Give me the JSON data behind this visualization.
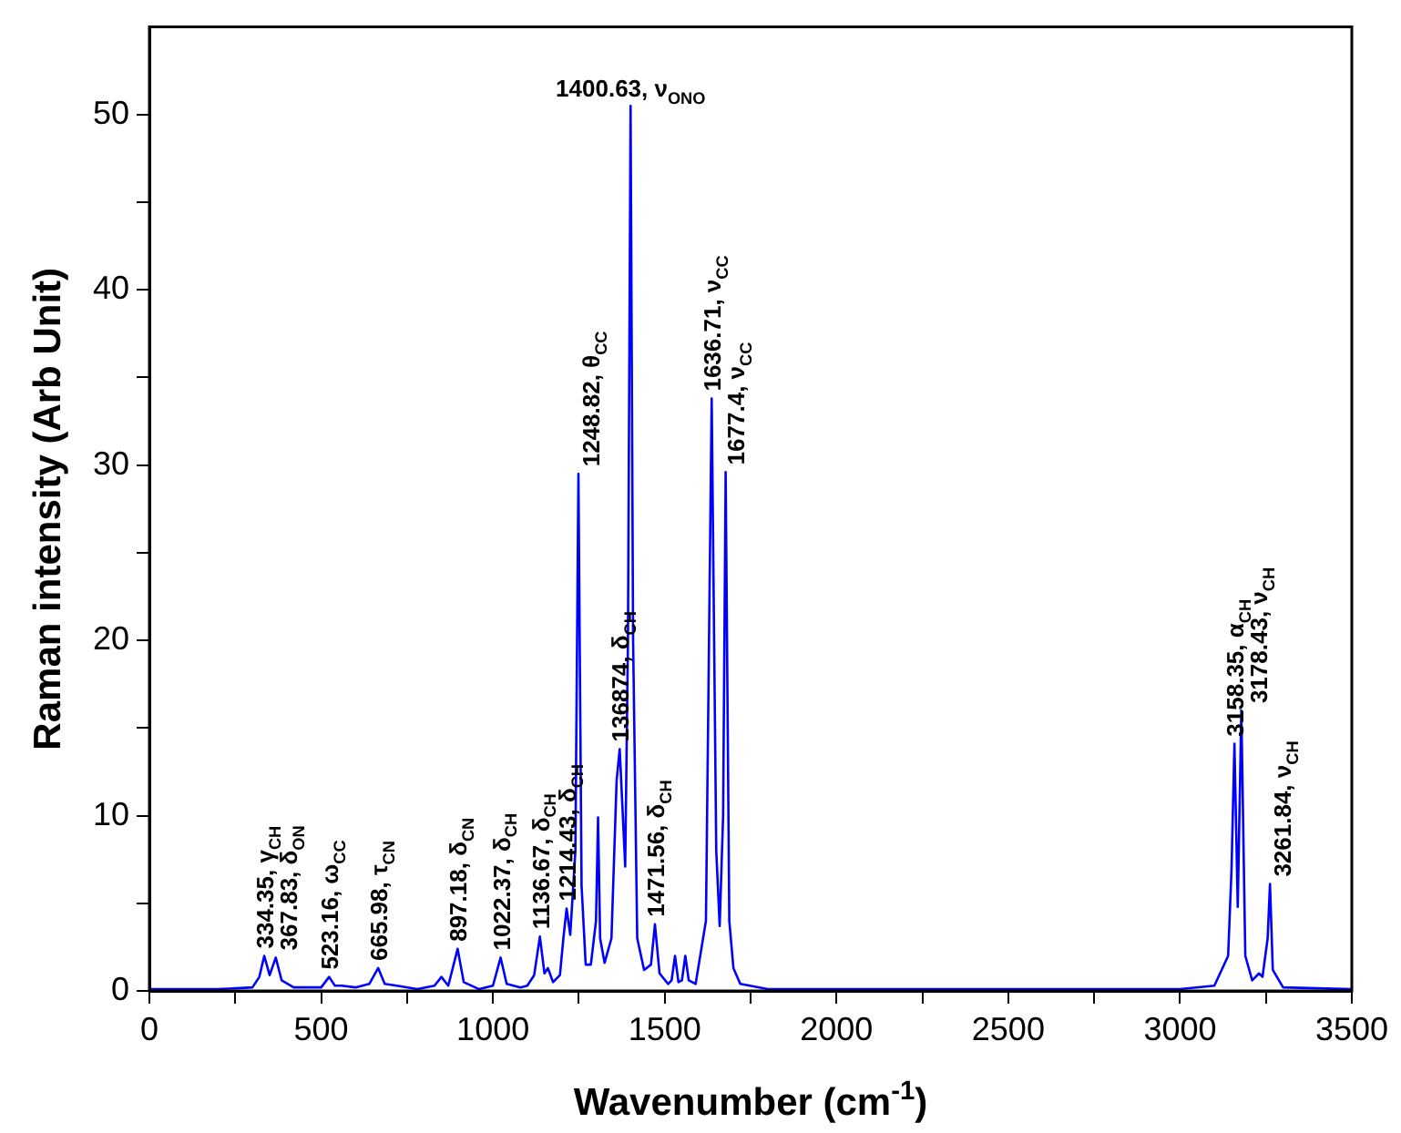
{
  "chart_data": {
    "type": "line",
    "xlabel": "Wavenumber (cm$^{-1}$)",
    "ylabel": "Raman intensity (Arb Unit)",
    "color": "#0000ff",
    "grid": false,
    "xlim": [
      0,
      3500
    ],
    "ylim": [
      0,
      55
    ],
    "xticks": [
      0,
      {
        "value": 250,
        "label": null
      },
      500,
      {
        "value": 750,
        "label": null
      },
      1000,
      {
        "value": 1250,
        "label": null
      },
      1500,
      {
        "value": 1750,
        "label": null
      },
      2000,
      {
        "value": 2250,
        "label": null
      },
      2500,
      {
        "value": 2750,
        "label": null
      },
      3000,
      {
        "value": 3250,
        "label": null
      },
      3500
    ],
    "yticks": [
      0,
      {
        "value": 5,
        "label": null
      },
      10,
      {
        "value": 15,
        "label": null
      },
      20,
      {
        "value": 25,
        "label": null
      },
      30,
      {
        "value": 35,
        "label": null
      },
      40,
      {
        "value": 45,
        "label": null
      },
      50
    ],
    "x": [
      0,
      200,
      300,
      320,
      334.35,
      350,
      367.83,
      385,
      420,
      500,
      523.16,
      540,
      560,
      600,
      640,
      665.98,
      685,
      720,
      780,
      830,
      850,
      870,
      897.18,
      915,
      960,
      1000,
      1022.37,
      1040,
      1080,
      1100,
      1120,
      1136.67,
      1150,
      1160,
      1175,
      1195,
      1205,
      1214.43,
      1225,
      1240,
      1248.82,
      1258,
      1270,
      1285,
      1300,
      1306,
      1312,
      1325,
      1345,
      1360,
      1369,
      1385,
      1393,
      1400.63,
      1408,
      1420,
      1440,
      1460,
      1471.56,
      1485,
      1510,
      1520,
      1530,
      1540,
      1550,
      1560,
      1570,
      1590,
      1620,
      1636.71,
      1650,
      1660,
      1670,
      1677.4,
      1688,
      1700,
      1720,
      1800,
      2000,
      3000,
      3100,
      3140,
      3150,
      3158.35,
      3168,
      3178.43,
      3190,
      3210,
      3230,
      3240,
      3255,
      3261.84,
      3270,
      3300,
      3500
    ],
    "values": [
      0.1,
      0.1,
      0.2,
      0.8,
      2.0,
      0.9,
      1.9,
      0.6,
      0.2,
      0.2,
      0.8,
      0.3,
      0.3,
      0.2,
      0.4,
      1.3,
      0.4,
      0.3,
      0.1,
      0.3,
      0.8,
      0.3,
      2.4,
      0.5,
      0.1,
      0.3,
      1.9,
      0.4,
      0.2,
      0.3,
      0.9,
      3.1,
      1.0,
      1.3,
      0.5,
      0.9,
      3.0,
      4.7,
      3.2,
      8,
      29.5,
      6,
      1.5,
      1.5,
      4,
      9.9,
      3,
      1.6,
      3,
      12,
      13.8,
      7.1,
      20,
      50.5,
      20,
      3,
      1.2,
      1.5,
      3.8,
      1.0,
      0.4,
      0.6,
      2.0,
      0.5,
      0.6,
      2.0,
      0.6,
      0.4,
      4,
      33.8,
      8,
      3.7,
      10,
      29.6,
      4,
      1.3,
      0.4,
      0.1,
      0.1,
      0.1,
      0.3,
      2,
      7,
      14.1,
      4.8,
      16.0,
      2,
      0.6,
      1.0,
      0.8,
      3,
      6.1,
      1.2,
      0.2,
      0.1
    ],
    "annotations": [
      {
        "text": "334.35, γ$_{CH}$",
        "x": 334.35,
        "y": 2.0
      },
      {
        "text": "367.83, δ$_{ON}$",
        "x": 367.83,
        "y": 1.9
      },
      {
        "text": "523.16, ω$_{CC}$",
        "x": 523.16,
        "y": 0.8
      },
      {
        "text": "665.98, τ$_{CN}$",
        "x": 665.98,
        "y": 1.3
      },
      {
        "text": "897.18, δ$_{CN}$",
        "x": 897.18,
        "y": 2.4
      },
      {
        "text": "1022.37, δ$_{CH}$",
        "x": 1022.37,
        "y": 1.9
      },
      {
        "text": "1136.67, δ$_{CH}$",
        "x": 1136.67,
        "y": 3.1
      },
      {
        "text": "1214.43, δ$_{CH}$",
        "x": 1214.43,
        "y": 4.7
      },
      {
        "text": "1248.82, θ$_{CC}$",
        "x": 1248.82,
        "y": 29.5
      },
      {
        "text": "136874, δ$_{CH}$",
        "x": 1369,
        "y": 13.8
      },
      {
        "text": "1400.63, ν$_{ONO}$",
        "x": 1400.63,
        "y": 50.5
      },
      {
        "text": "1471.56, δ$_{CH}$",
        "x": 1471.56,
        "y": 3.8
      },
      {
        "text": "1636.71, ν$_{CC}$",
        "x": 1636.71,
        "y": 33.8
      },
      {
        "text": "1677.4, ν$_{CC}$",
        "x": 1677.4,
        "y": 29.6
      },
      {
        "text": "3158.35, α$_{CH}$",
        "x": 3158.35,
        "y": 14.1
      },
      {
        "text": "3178.43, ν$_{CH}$",
        "x": 3178.43,
        "y": 16.0
      },
      {
        "text": "3261.84, ν$_{CH}$",
        "x": 3261.84,
        "y": 6.1
      }
    ]
  }
}
